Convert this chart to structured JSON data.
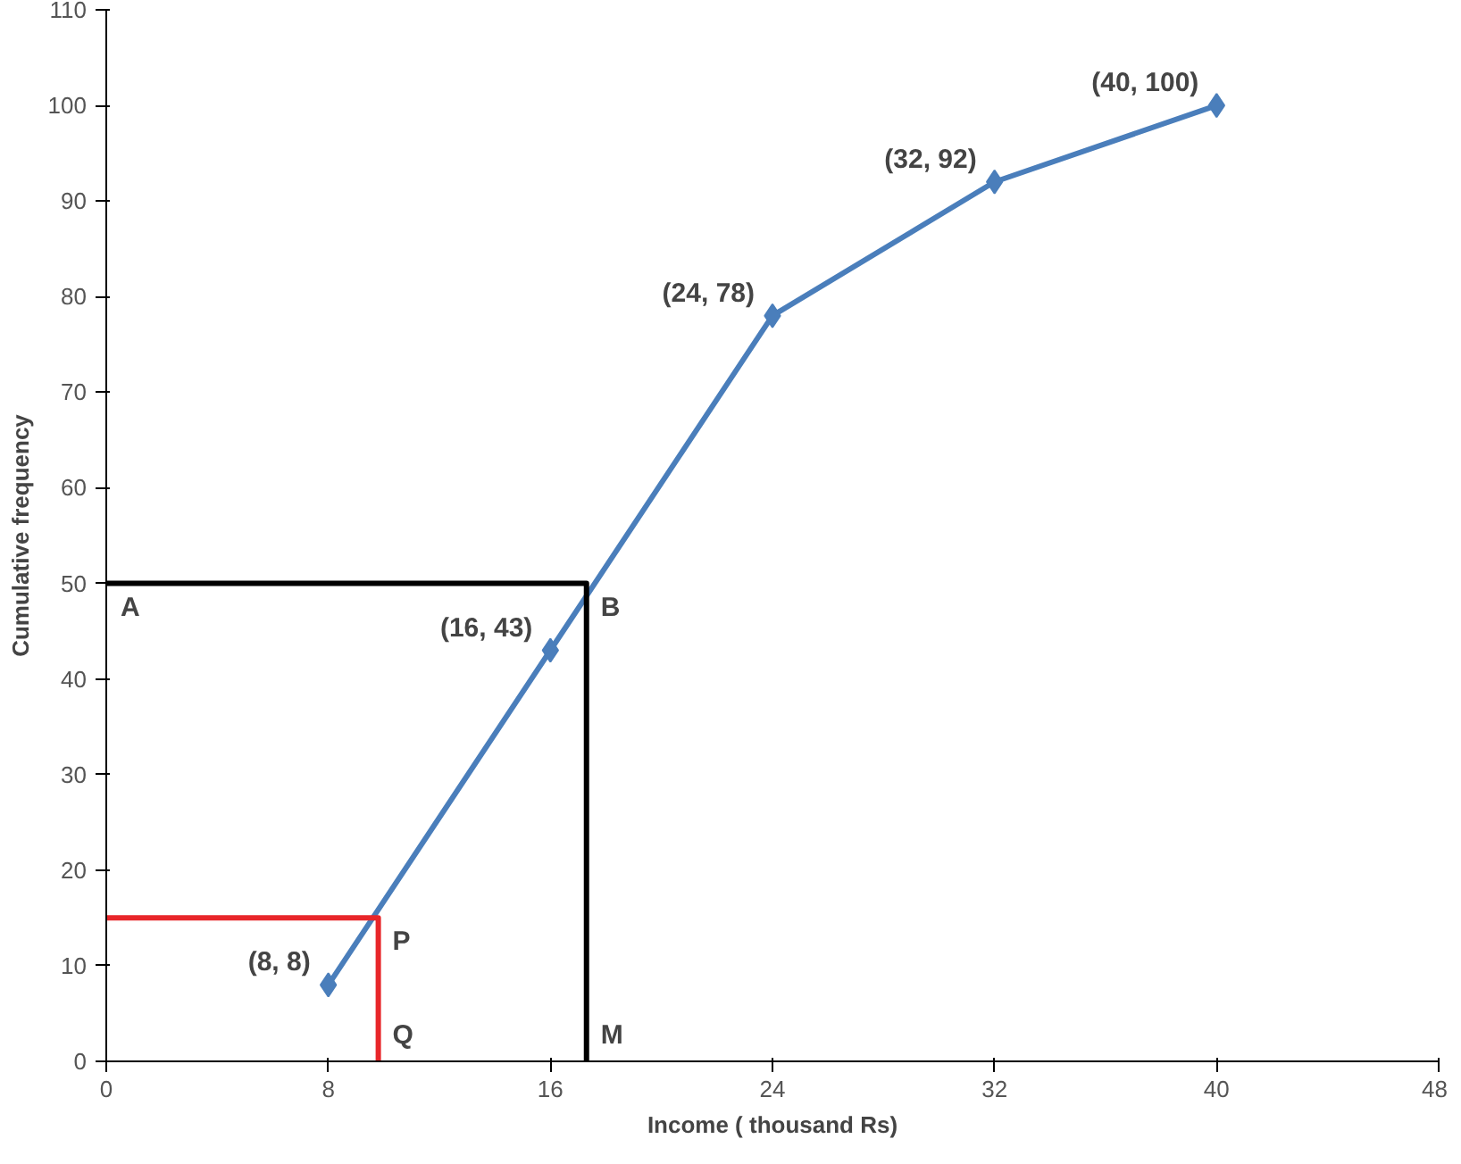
{
  "chart_data": {
    "type": "line",
    "xlabel": "Income ( thousand Rs)",
    "ylabel": "Cumulative frequency",
    "xlim": [
      0,
      48
    ],
    "xticks": [
      0,
      8,
      16,
      24,
      32,
      40,
      48
    ],
    "ylim": [
      0,
      110
    ],
    "yticks": [
      0,
      10,
      20,
      30,
      40,
      50,
      60,
      70,
      80,
      90,
      100,
      110
    ],
    "grid": false,
    "marker": "diamond",
    "series": [
      {
        "color": "#4a7ebb",
        "x": [
          8,
          16,
          24,
          32,
          40
        ],
        "values": [
          8,
          43,
          78,
          92,
          100
        ]
      },
      {
        "color": "#000000",
        "x": [
          0,
          17.3,
          17.3
        ],
        "values": [
          50,
          50,
          0
        ],
        "marker": "none"
      },
      {
        "color": "#e8262a",
        "x": [
          0,
          9.8,
          9.8
        ],
        "values": [
          15,
          15,
          0
        ],
        "marker": "none"
      }
    ],
    "annotations": [
      {
        "text": "(8, 8)",
        "x": 8,
        "y": 8
      },
      {
        "text": "(16, 43)",
        "x": 16,
        "y": 43
      },
      {
        "text": "(24, 78)",
        "x": 24,
        "y": 78
      },
      {
        "text": "(32, 92)",
        "x": 32,
        "y": 92
      },
      {
        "text": "(40, 100)",
        "x": 40,
        "y": 100
      },
      {
        "text": "A",
        "x": 0,
        "y": 50
      },
      {
        "text": "B",
        "x": 17.3,
        "y": 50
      },
      {
        "text": "M",
        "x": 17.3,
        "y": 0
      },
      {
        "text": "P",
        "x": 9.8,
        "y": 15
      },
      {
        "text": "Q",
        "x": 9.8,
        "y": 0
      }
    ]
  }
}
